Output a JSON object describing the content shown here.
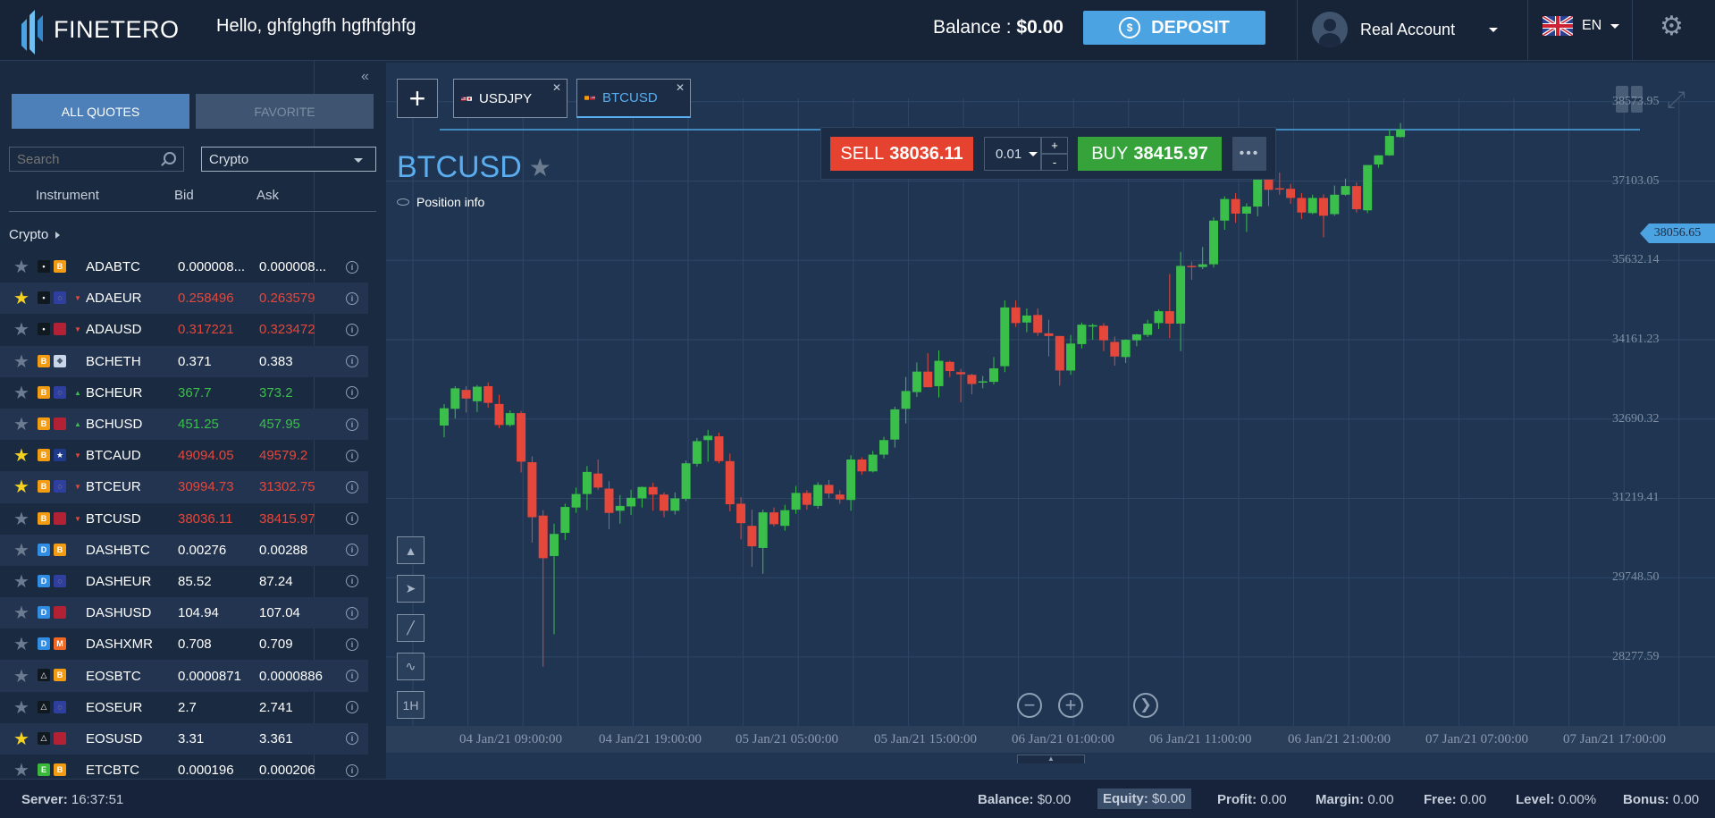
{
  "brand": "FINETERO",
  "greeting": "Hello, ghfghgfh hgfhfghfg",
  "balance": {
    "label": "Balance :",
    "value": "$0.00"
  },
  "deposit_label": "DEPOSIT",
  "account_label": "Real Account",
  "language": "EN",
  "quotes_tabs": {
    "all": "ALL QUOTES",
    "favorite": "FAVORITE"
  },
  "search": {
    "placeholder": "Search"
  },
  "category_select": "Crypto",
  "columns": {
    "instrument": "Instrument",
    "bid": "Bid",
    "ask": "Ask"
  },
  "group_label": "Crypto",
  "instruments": [
    {
      "symbol": "ADABTC",
      "bid": "0.000008...",
      "ask": "0.000008...",
      "trend": "neutral",
      "favorite": false,
      "icons": [
        "ada-icon",
        "btc-icon"
      ]
    },
    {
      "symbol": "ADAEUR",
      "bid": "0.258496",
      "ask": "0.263579",
      "trend": "down",
      "favorite": true,
      "icons": [
        "ada-icon",
        "eur-icon"
      ]
    },
    {
      "symbol": "ADAUSD",
      "bid": "0.317221",
      "ask": "0.323472",
      "trend": "down",
      "favorite": false,
      "icons": [
        "ada-icon",
        "usd-flag-icon"
      ]
    },
    {
      "symbol": "BCHETH",
      "bid": "0.371",
      "ask": "0.383",
      "trend": "neutral",
      "favorite": false,
      "icons": [
        "bch-icon",
        "eth-icon"
      ]
    },
    {
      "symbol": "BCHEUR",
      "bid": "367.7",
      "ask": "373.2",
      "trend": "up",
      "favorite": false,
      "icons": [
        "bch-icon",
        "eur-icon"
      ]
    },
    {
      "symbol": "BCHUSD",
      "bid": "451.25",
      "ask": "457.95",
      "trend": "up",
      "favorite": false,
      "icons": [
        "bch-icon",
        "usd-flag-icon"
      ]
    },
    {
      "symbol": "BTCAUD",
      "bid": "49094.05",
      "ask": "49579.2",
      "trend": "down",
      "favorite": true,
      "icons": [
        "btc-icon",
        "aud-flag-icon"
      ]
    },
    {
      "symbol": "BTCEUR",
      "bid": "30994.73",
      "ask": "31302.75",
      "trend": "down",
      "favorite": true,
      "icons": [
        "btc-icon",
        "eur-icon"
      ]
    },
    {
      "symbol": "BTCUSD",
      "bid": "38036.11",
      "ask": "38415.97",
      "trend": "down",
      "favorite": false,
      "icons": [
        "btc-icon",
        "usd-flag-icon"
      ]
    },
    {
      "symbol": "DASHBTC",
      "bid": "0.00276",
      "ask": "0.00288",
      "trend": "neutral",
      "favorite": false,
      "icons": [
        "dash-icon",
        "btc-icon"
      ]
    },
    {
      "symbol": "DASHEUR",
      "bid": "85.52",
      "ask": "87.24",
      "trend": "neutral",
      "favorite": false,
      "icons": [
        "dash-icon",
        "eur-icon"
      ]
    },
    {
      "symbol": "DASHUSD",
      "bid": "104.94",
      "ask": "107.04",
      "trend": "neutral",
      "favorite": false,
      "icons": [
        "dash-icon",
        "usd-flag-icon"
      ]
    },
    {
      "symbol": "DASHXMR",
      "bid": "0.708",
      "ask": "0.709",
      "trend": "neutral",
      "favorite": false,
      "icons": [
        "dash-icon",
        "xmr-icon"
      ]
    },
    {
      "symbol": "EOSBTC",
      "bid": "0.0000871",
      "ask": "0.0000886",
      "trend": "neutral",
      "favorite": false,
      "icons": [
        "eos-icon",
        "btc-icon"
      ]
    },
    {
      "symbol": "EOSEUR",
      "bid": "2.7",
      "ask": "2.741",
      "trend": "neutral",
      "favorite": false,
      "icons": [
        "eos-icon",
        "eur-icon"
      ]
    },
    {
      "symbol": "EOSUSD",
      "bid": "3.31",
      "ask": "3.361",
      "trend": "neutral",
      "favorite": true,
      "icons": [
        "eos-icon",
        "usd-flag-icon"
      ]
    },
    {
      "symbol": "ETCBTC",
      "bid": "0.000196",
      "ask": "0.000206",
      "trend": "neutral",
      "favorite": false,
      "icons": [
        "etc-icon",
        "btc-icon"
      ]
    }
  ],
  "chart_tabs": [
    {
      "label": "USDJPY",
      "active": false
    },
    {
      "label": "BTCUSD",
      "active": true
    }
  ],
  "chart_title": "BTCUSD",
  "position_info": "Position info",
  "trade": {
    "sell_label": "SELL",
    "sell_price": "38036.11",
    "buy_label": "BUY",
    "buy_price": "38415.97",
    "lot": "0.01",
    "plus": "+",
    "minus": "-"
  },
  "timeframe_label": "1H",
  "current_price_tag": "38056.65",
  "footer": {
    "server_label": "Server:",
    "server_time": "16:37:51",
    "balance_label": "Balance:",
    "balance": "$0.00",
    "equity_label": "Equity:",
    "equity": "$0.00",
    "profit_label": "Profit:",
    "profit": "0.00",
    "margin_label": "Margin:",
    "margin": "0.00",
    "free_label": "Free:",
    "free": "0.00",
    "level_label": "Level:",
    "level": "0.00%",
    "bonus_label": "Bonus:",
    "bonus": "0.00"
  },
  "colors": {
    "up": "#3bbf4b",
    "down": "#e5473b",
    "accent": "#4ba3e2",
    "sell": "#e5432f",
    "buy": "#35a33a"
  },
  "chart_data": {
    "type": "candlestick",
    "symbol": "BTCUSD",
    "x_ticks": [
      "04 Jan/21 09:00:00",
      "04 Jan/21 19:00:00",
      "05 Jan/21 05:00:00",
      "05 Jan/21 15:00:00",
      "06 Jan/21 01:00:00",
      "06 Jan/21 11:00:00",
      "06 Jan/21 21:00:00",
      "07 Jan/21 07:00:00",
      "07 Jan/21 17:00:00"
    ],
    "y_ticks": [
      "38573.95",
      "37103.05",
      "35632.14",
      "34161.23",
      "32690.32",
      "31219.41",
      "29748.50",
      "28277.59"
    ],
    "ylim": [
      27000,
      39300
    ],
    "current_price": 38056.65,
    "grid": true,
    "candles": [
      {
        "o": 32570,
        "h": 32970,
        "l": 32350,
        "c": 32890
      },
      {
        "o": 32880,
        "h": 33300,
        "l": 32700,
        "c": 33260
      },
      {
        "o": 33230,
        "h": 33300,
        "l": 32810,
        "c": 33070
      },
      {
        "o": 33020,
        "h": 33320,
        "l": 32820,
        "c": 33290
      },
      {
        "o": 33300,
        "h": 33370,
        "l": 32900,
        "c": 32990
      },
      {
        "o": 32970,
        "h": 33140,
        "l": 32520,
        "c": 32580
      },
      {
        "o": 32580,
        "h": 32850,
        "l": 32550,
        "c": 32800
      },
      {
        "o": 32800,
        "h": 32840,
        "l": 31700,
        "c": 31900
      },
      {
        "o": 31890,
        "h": 32000,
        "l": 30400,
        "c": 30870
      },
      {
        "o": 30900,
        "h": 31000,
        "l": 28100,
        "c": 30110
      },
      {
        "o": 30150,
        "h": 30750,
        "l": 28700,
        "c": 30560
      },
      {
        "o": 30580,
        "h": 31120,
        "l": 30450,
        "c": 31060
      },
      {
        "o": 31050,
        "h": 31420,
        "l": 30950,
        "c": 31300
      },
      {
        "o": 31300,
        "h": 31820,
        "l": 31000,
        "c": 31710
      },
      {
        "o": 31680,
        "h": 31940,
        "l": 31380,
        "c": 31420
      },
      {
        "o": 31400,
        "h": 31540,
        "l": 30650,
        "c": 30950
      },
      {
        "o": 30990,
        "h": 31280,
        "l": 30750,
        "c": 31080
      },
      {
        "o": 31070,
        "h": 31380,
        "l": 30910,
        "c": 31230
      },
      {
        "o": 31220,
        "h": 31440,
        "l": 31050,
        "c": 31430
      },
      {
        "o": 31430,
        "h": 31510,
        "l": 30990,
        "c": 31290
      },
      {
        "o": 31290,
        "h": 31330,
        "l": 30870,
        "c": 30990
      },
      {
        "o": 30990,
        "h": 31330,
        "l": 30920,
        "c": 31220
      },
      {
        "o": 31210,
        "h": 31920,
        "l": 31170,
        "c": 31870
      },
      {
        "o": 31860,
        "h": 32340,
        "l": 31810,
        "c": 32280
      },
      {
        "o": 32300,
        "h": 32490,
        "l": 31900,
        "c": 32380
      },
      {
        "o": 32370,
        "h": 32440,
        "l": 31870,
        "c": 31910
      },
      {
        "o": 31910,
        "h": 32050,
        "l": 30980,
        "c": 31110
      },
      {
        "o": 31120,
        "h": 31240,
        "l": 30460,
        "c": 30760
      },
      {
        "o": 30710,
        "h": 31010,
        "l": 29950,
        "c": 30330
      },
      {
        "o": 30300,
        "h": 31010,
        "l": 29820,
        "c": 30960
      },
      {
        "o": 30960,
        "h": 31050,
        "l": 30700,
        "c": 30740
      },
      {
        "o": 30710,
        "h": 31100,
        "l": 30620,
        "c": 31000
      },
      {
        "o": 31010,
        "h": 31450,
        "l": 30930,
        "c": 31320
      },
      {
        "o": 31320,
        "h": 31370,
        "l": 31010,
        "c": 31100
      },
      {
        "o": 31080,
        "h": 31520,
        "l": 31030,
        "c": 31470
      },
      {
        "o": 31470,
        "h": 31560,
        "l": 31220,
        "c": 31310
      },
      {
        "o": 31290,
        "h": 31370,
        "l": 31120,
        "c": 31200
      },
      {
        "o": 31190,
        "h": 32020,
        "l": 30990,
        "c": 31940
      },
      {
        "o": 31940,
        "h": 31980,
        "l": 31660,
        "c": 31720
      },
      {
        "o": 31720,
        "h": 32100,
        "l": 31700,
        "c": 32030
      },
      {
        "o": 32030,
        "h": 32360,
        "l": 31960,
        "c": 32300
      },
      {
        "o": 32310,
        "h": 32920,
        "l": 32160,
        "c": 32870
      },
      {
        "o": 32880,
        "h": 33470,
        "l": 32610,
        "c": 33210
      },
      {
        "o": 33190,
        "h": 33740,
        "l": 33100,
        "c": 33570
      },
      {
        "o": 33570,
        "h": 33910,
        "l": 33280,
        "c": 33280
      },
      {
        "o": 33300,
        "h": 33960,
        "l": 33090,
        "c": 33770
      },
      {
        "o": 33750,
        "h": 33770,
        "l": 33470,
        "c": 33580
      },
      {
        "o": 33560,
        "h": 33620,
        "l": 33000,
        "c": 33520
      },
      {
        "o": 33510,
        "h": 33530,
        "l": 33150,
        "c": 33340
      },
      {
        "o": 33380,
        "h": 33490,
        "l": 33260,
        "c": 33390
      },
      {
        "o": 33380,
        "h": 33840,
        "l": 33330,
        "c": 33630
      },
      {
        "o": 33670,
        "h": 34890,
        "l": 33560,
        "c": 34760
      },
      {
        "o": 34760,
        "h": 34890,
        "l": 34400,
        "c": 34470
      },
      {
        "o": 34480,
        "h": 34740,
        "l": 34300,
        "c": 34610
      },
      {
        "o": 34620,
        "h": 34740,
        "l": 34230,
        "c": 34290
      },
      {
        "o": 34280,
        "h": 34530,
        "l": 33850,
        "c": 34230
      },
      {
        "o": 34230,
        "h": 34230,
        "l": 33310,
        "c": 33590
      },
      {
        "o": 33590,
        "h": 34250,
        "l": 33510,
        "c": 34090
      },
      {
        "o": 34080,
        "h": 34480,
        "l": 34000,
        "c": 34440
      },
      {
        "o": 34430,
        "h": 34460,
        "l": 34160,
        "c": 34430
      },
      {
        "o": 34420,
        "h": 34470,
        "l": 33950,
        "c": 34150
      },
      {
        "o": 34120,
        "h": 34220,
        "l": 33680,
        "c": 33850
      },
      {
        "o": 33840,
        "h": 34170,
        "l": 33730,
        "c": 34160
      },
      {
        "o": 34150,
        "h": 34270,
        "l": 34040,
        "c": 34260
      },
      {
        "o": 34250,
        "h": 34530,
        "l": 34210,
        "c": 34460
      },
      {
        "o": 34470,
        "h": 34720,
        "l": 34360,
        "c": 34690
      },
      {
        "o": 34690,
        "h": 35380,
        "l": 34190,
        "c": 34460
      },
      {
        "o": 34460,
        "h": 35790,
        "l": 33950,
        "c": 35530
      },
      {
        "o": 35530,
        "h": 35610,
        "l": 35270,
        "c": 35510
      },
      {
        "o": 35510,
        "h": 35880,
        "l": 35470,
        "c": 35560
      },
      {
        "o": 35560,
        "h": 36430,
        "l": 35500,
        "c": 36370
      },
      {
        "o": 36370,
        "h": 36820,
        "l": 36200,
        "c": 36770
      },
      {
        "o": 36770,
        "h": 36880,
        "l": 36330,
        "c": 36500
      },
      {
        "o": 36500,
        "h": 36690,
        "l": 36160,
        "c": 36630
      },
      {
        "o": 36630,
        "h": 37200,
        "l": 36450,
        "c": 37140
      },
      {
        "o": 37140,
        "h": 37200,
        "l": 36640,
        "c": 36940
      },
      {
        "o": 36970,
        "h": 37260,
        "l": 36850,
        "c": 36960
      },
      {
        "o": 36960,
        "h": 37050,
        "l": 36680,
        "c": 36790
      },
      {
        "o": 36790,
        "h": 36880,
        "l": 36400,
        "c": 36520
      },
      {
        "o": 36510,
        "h": 36850,
        "l": 36490,
        "c": 36790
      },
      {
        "o": 36790,
        "h": 36860,
        "l": 36060,
        "c": 36460
      },
      {
        "o": 36490,
        "h": 37020,
        "l": 36460,
        "c": 36850
      },
      {
        "o": 36850,
        "h": 37150,
        "l": 36830,
        "c": 37010
      },
      {
        "o": 37010,
        "h": 37080,
        "l": 36520,
        "c": 36580
      },
      {
        "o": 36560,
        "h": 37400,
        "l": 36510,
        "c": 37400
      },
      {
        "o": 37410,
        "h": 37580,
        "l": 37350,
        "c": 37580
      },
      {
        "o": 37580,
        "h": 38060,
        "l": 37570,
        "c": 37940
      },
      {
        "o": 37920,
        "h": 38180,
        "l": 37910,
        "c": 38060
      }
    ]
  }
}
